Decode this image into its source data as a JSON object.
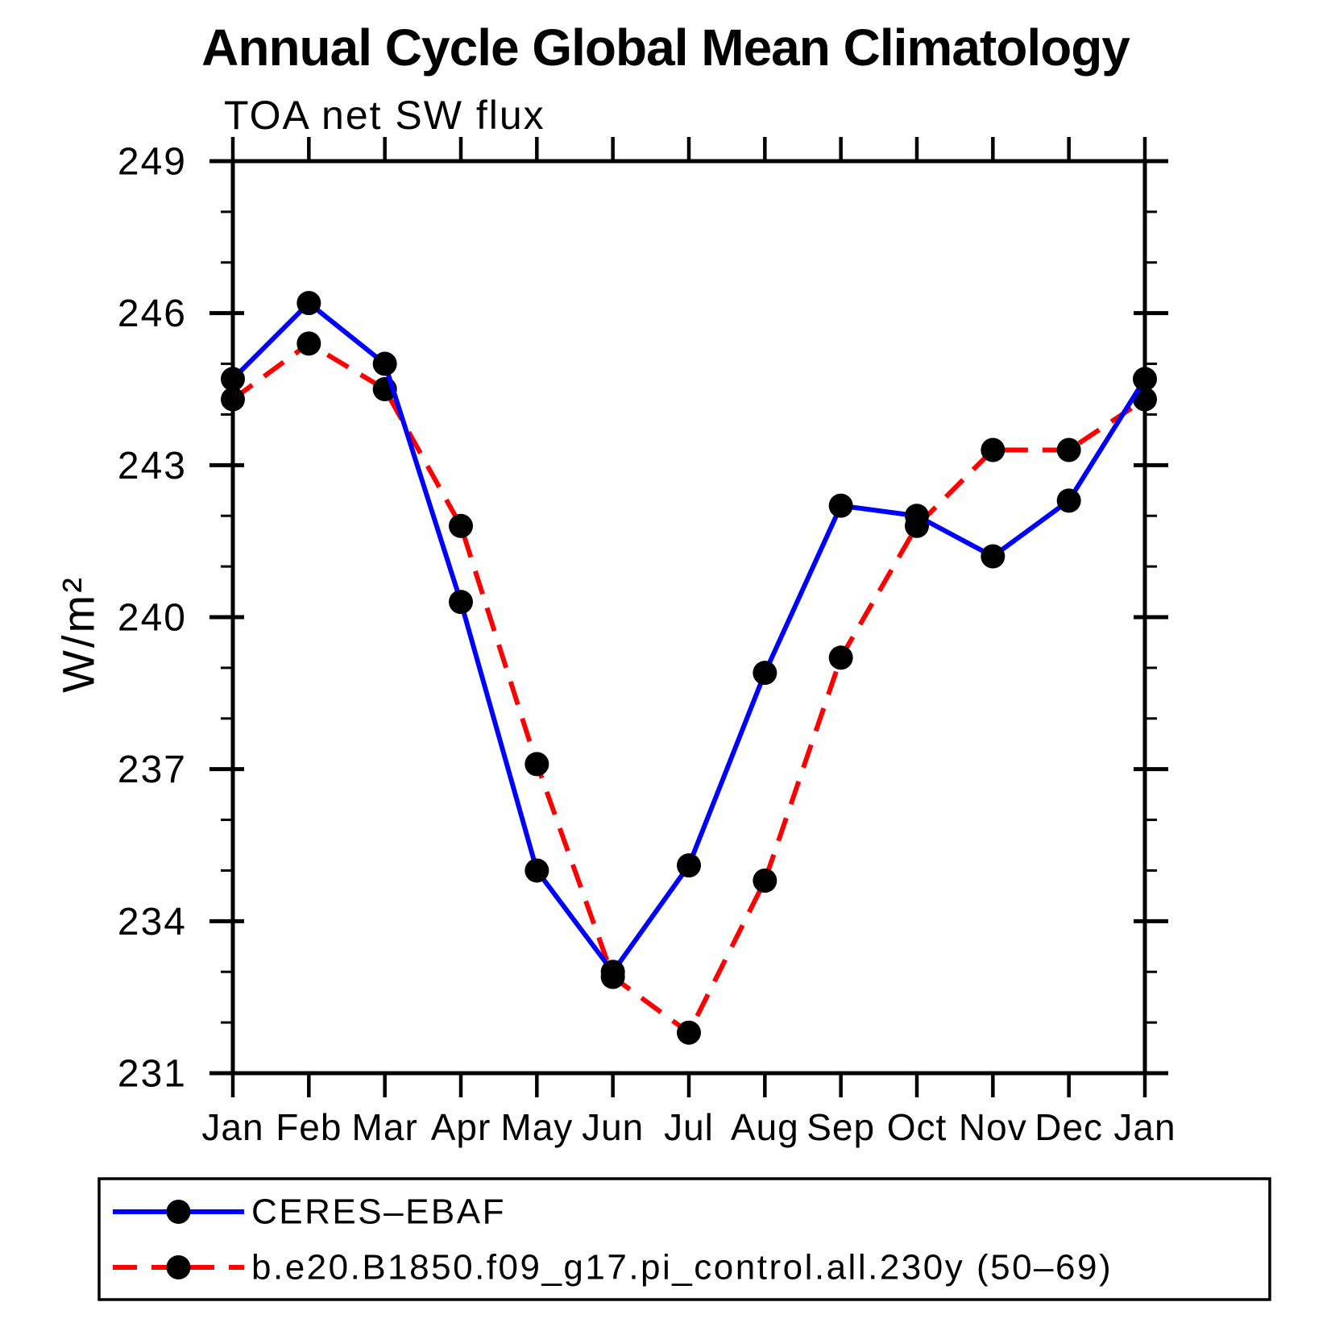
{
  "chart": {
    "title": "Annual Cycle Global Mean Climatology",
    "subtitle": "TOA net SW flux",
    "ylabel": "W/m²"
  },
  "chart_data": {
    "type": "line",
    "title": "Annual Cycle Global Mean Climatology",
    "subtitle": "TOA net SW flux",
    "xlabel": "",
    "ylabel": "W/m²",
    "categories": [
      "Jan",
      "Feb",
      "Mar",
      "Apr",
      "May",
      "Jun",
      "Jul",
      "Aug",
      "Sep",
      "Oct",
      "Nov",
      "Dec",
      "Jan"
    ],
    "series": [
      {
        "name": "CERES–EBAF",
        "color": "#0000ff",
        "line_style": "solid",
        "marker_color": "#000000",
        "values": [
          244.7,
          246.2,
          245.0,
          240.3,
          235.0,
          233.0,
          235.1,
          238.9,
          242.2,
          242.0,
          241.2,
          242.3,
          244.7
        ]
      },
      {
        "name": "b.e20.B1850.f09_g17.pi_control.all.230y (50–69)",
        "color": "#ff0000",
        "line_style": "dashed",
        "marker_color": "#000000",
        "values": [
          244.3,
          245.4,
          244.5,
          241.8,
          237.1,
          232.9,
          231.8,
          234.8,
          239.2,
          241.8,
          243.3,
          243.3,
          244.3
        ]
      }
    ],
    "ylim": [
      231,
      249
    ],
    "ytick_major_step": 3,
    "ytick_minor_step": 1,
    "grid": false,
    "legend_position": "bottom-left-box"
  }
}
